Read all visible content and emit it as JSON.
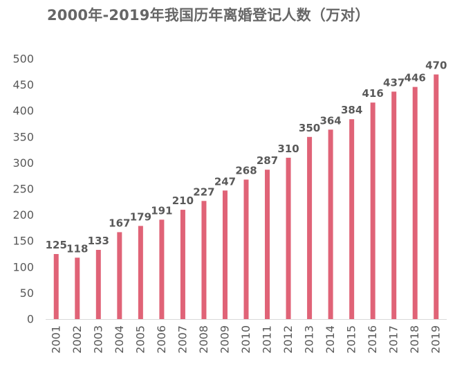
{
  "chart_data": {
    "type": "bar",
    "title": "2000年-2019年我国历年离婚登记人数（万对）",
    "xlabel": "",
    "ylabel": "",
    "categories": [
      "2001",
      "2002",
      "2003",
      "2004",
      "2005",
      "2006",
      "2007",
      "2008",
      "2009",
      "2010",
      "2011",
      "2012",
      "2013",
      "2014",
      "2015",
      "2016",
      "2017",
      "2018",
      "2019"
    ],
    "values": [
      125,
      118,
      133,
      167,
      179,
      191,
      210,
      227,
      247,
      268,
      287,
      310,
      350,
      364,
      384,
      416,
      437,
      446,
      470
    ],
    "data_labels": [
      "125",
      "118",
      "133",
      "167",
      "179",
      "191",
      "210",
      "227",
      "247",
      "268",
      "287",
      "310",
      "350",
      "364",
      "384",
      "416",
      "437",
      "446",
      "470"
    ],
    "ylim": [
      0,
      500
    ],
    "yticks": [
      0,
      50,
      100,
      150,
      200,
      250,
      300,
      350,
      400,
      450,
      500
    ],
    "ytick_labels": [
      "0",
      "50",
      "100",
      "150",
      "200",
      "250",
      "300",
      "350",
      "400",
      "450",
      "500"
    ],
    "grid": false,
    "legend": "none",
    "bar_color": "#E06377",
    "axis_color": "#d9d9d9",
    "text_color": "#595959"
  }
}
